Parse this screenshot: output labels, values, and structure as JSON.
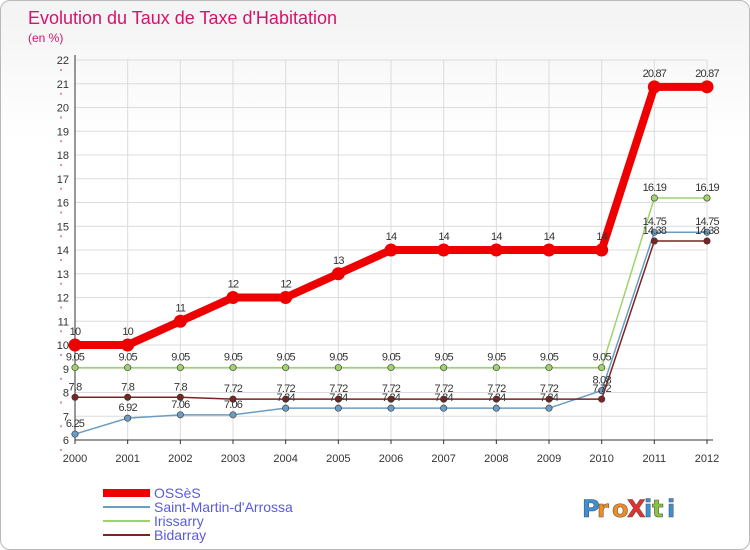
{
  "chart_data": {
    "type": "line",
    "title": "Evolution du Taux de Taxe d'Habitation",
    "subtitle": "(en %)",
    "x": [
      "2000",
      "2001",
      "2002",
      "2003",
      "2004",
      "2005",
      "2006",
      "2007",
      "2008",
      "2009",
      "2010",
      "2011",
      "2012"
    ],
    "ylim": [
      6,
      22
    ],
    "yticks": [
      6,
      7,
      8,
      9,
      10,
      11,
      12,
      13,
      14,
      15,
      16,
      17,
      18,
      19,
      20,
      21,
      22
    ],
    "grid": true,
    "legend_position": "bottom-left",
    "series": [
      {
        "name": "OSSèS",
        "color": "#ee0000",
        "values": [
          10,
          10,
          11,
          12,
          12,
          13,
          14,
          14,
          14,
          14,
          14,
          20.87,
          20.87
        ],
        "labels": [
          "10",
          "10",
          "11",
          "12",
          "12",
          "13",
          "14",
          "14",
          "14",
          "14",
          "14",
          "20.87",
          "20.87"
        ]
      },
      {
        "name": "Saint-Martin-d'Arrossa",
        "color": "#6b9cc4",
        "values": [
          6.25,
          6.92,
          7.06,
          7.06,
          7.34,
          7.34,
          7.34,
          7.34,
          7.34,
          7.34,
          8.08,
          14.75,
          14.75
        ],
        "labels": [
          "6.25",
          "6.92",
          "7.06",
          "7.06",
          "7.34",
          "7.34",
          "7.34",
          "7.34",
          "7.34",
          "7.34",
          "8.08",
          "14.75",
          "14.75"
        ]
      },
      {
        "name": "Irissarry",
        "color": "#9ed36b",
        "values": [
          9.05,
          9.05,
          9.05,
          9.05,
          9.05,
          9.05,
          9.05,
          9.05,
          9.05,
          9.05,
          9.05,
          16.19,
          16.19
        ],
        "labels": [
          "9.05",
          "9.05",
          "9.05",
          "9.05",
          "9.05",
          "9.05",
          "9.05",
          "9.05",
          "9.05",
          "9.05",
          "9.05",
          "16.19",
          "16.19"
        ]
      },
      {
        "name": "Bidarray",
        "color": "#7a2424",
        "values": [
          7.8,
          7.8,
          7.8,
          7.72,
          7.72,
          7.72,
          7.72,
          7.72,
          7.72,
          7.72,
          7.72,
          14.38,
          14.38
        ],
        "labels": [
          "7.8",
          "7.8",
          "7.8",
          "7.72",
          "7.72",
          "7.72",
          "7.72",
          "7.72",
          "7.72",
          "7.72",
          "7.72",
          "14.38",
          "14.38"
        ]
      }
    ]
  },
  "logo_text": "ProXiti"
}
